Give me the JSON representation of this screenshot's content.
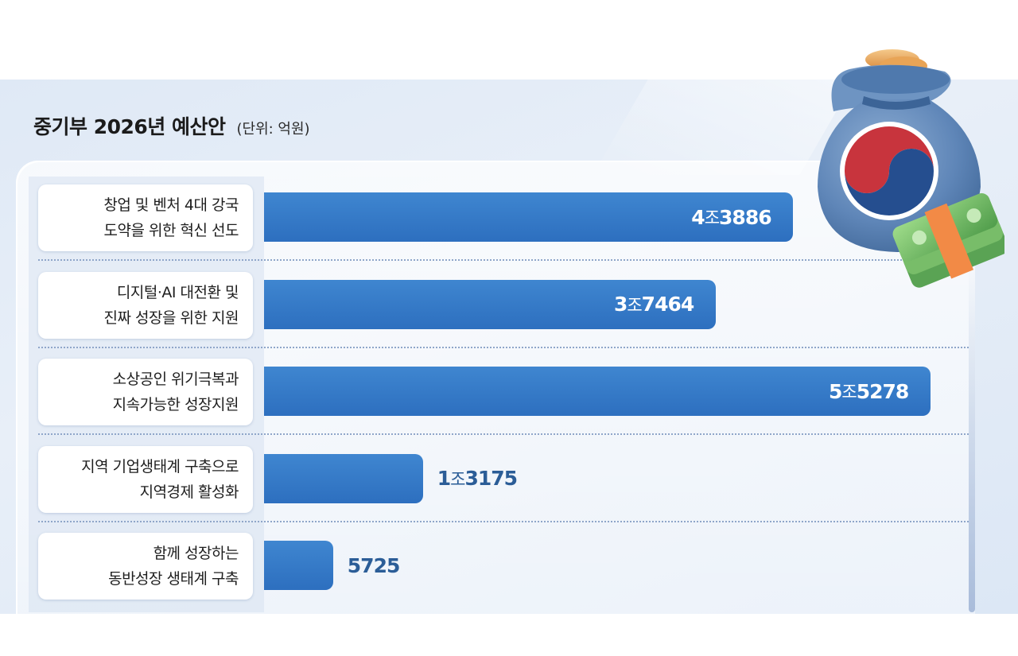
{
  "chart_data": {
    "type": "bar",
    "orientation": "horizontal",
    "title": "중기부 2026년 예산안",
    "unit": "(단위: 억원)",
    "categories": [
      [
        "창업 및 벤처 4대 강국",
        "도약을 위한 혁신 선도"
      ],
      [
        "디지털·AI 대전환 및",
        "진짜 성장을 위한 지원"
      ],
      [
        "소상공인 위기극복과",
        "지속가능한 성장지원"
      ],
      [
        "지역 기업생태계 구축으로",
        "지역경제 활성화"
      ],
      [
        "함께 성장하는",
        "동반성장 생태계 구축"
      ]
    ],
    "values": [
      43886,
      37464,
      55278,
      13175,
      5725
    ],
    "value_labels": [
      {
        "jo": "4",
        "jo_unit": "조",
        "rest": "3886"
      },
      {
        "jo": "3",
        "jo_unit": "조",
        "rest": "7464"
      },
      {
        "jo": "5",
        "jo_unit": "조",
        "rest": "5278"
      },
      {
        "jo": "1",
        "jo_unit": "조",
        "rest": "3175"
      },
      {
        "jo": "",
        "jo_unit": "",
        "rest": "5725"
      }
    ],
    "label_inside_bar": [
      true,
      true,
      true,
      false,
      false
    ],
    "colors": {
      "bar": "#3479c8",
      "label_inside": "#ffffff",
      "label_outside": "#2b5d97"
    }
  },
  "illustration": {
    "icon": "money-bag-with-cash-icon"
  }
}
